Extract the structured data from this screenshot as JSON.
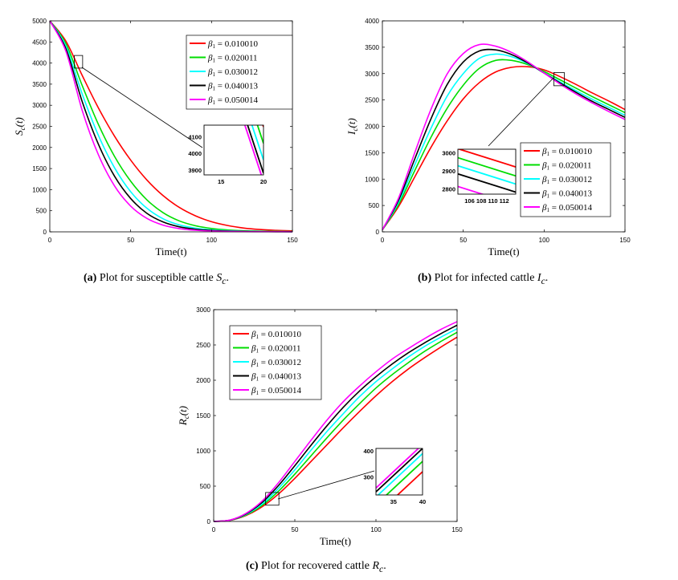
{
  "figure": {
    "panels": [
      {
        "id": "a",
        "caption": {
          "label": "(a)",
          "text": "Plot for susceptible cattle",
          "sym": "S",
          "sub": "c",
          "end": "."
        },
        "chart_data": {
          "type": "line",
          "xlabel": "Time(t)",
          "ylabel": {
            "sym": "S",
            "sub": "c",
            "arg": "(t)"
          },
          "xlim": [
            0,
            150
          ],
          "ylim": [
            0,
            5000
          ],
          "xticks": [
            0,
            50,
            100,
            150
          ],
          "yticks": [
            0,
            500,
            1000,
            1500,
            2000,
            2500,
            3000,
            3500,
            4000,
            4500,
            5000
          ],
          "legend_location": "upper-right",
          "series": [
            {
              "name": "β1 = 0.010010",
              "beta": "0.010010",
              "color": "#ff0000",
              "x": [
                0,
                10,
                20,
                30,
                40,
                50,
                60,
                70,
                80,
                90,
                100,
                110,
                120,
                130,
                140,
                150
              ],
              "y": [
                5000,
                4515,
                3710,
                2940,
                2268,
                1700,
                1230,
                860,
                580,
                380,
                240,
                150,
                90,
                55,
                35,
                22
              ]
            },
            {
              "name": "β1 = 0.020011",
              "beta": "0.020011",
              "color": "#00dd00",
              "x": [
                0,
                10,
                20,
                30,
                40,
                50,
                60,
                70,
                80,
                90,
                100,
                110,
                120,
                130,
                140,
                150
              ],
              "y": [
                5000,
                4455,
                3470,
                2550,
                1790,
                1200,
                760,
                455,
                260,
                145,
                80,
                44,
                25,
                15,
                10,
                7
              ]
            },
            {
              "name": "β1 = 0.030012",
              "beta": "0.030012",
              "color": "#00ffff",
              "x": [
                0,
                10,
                20,
                30,
                40,
                50,
                60,
                70,
                80,
                90,
                100,
                110,
                120,
                130,
                140,
                150
              ],
              "y": [
                5000,
                4395,
                3270,
                2290,
                1520,
                950,
                560,
                310,
                165,
                88,
                46,
                25,
                14,
                9,
                6,
                4
              ]
            },
            {
              "name": "β1 = 0.040013",
              "beta": "0.040013",
              "color": "#000000",
              "x": [
                0,
                10,
                20,
                30,
                40,
                50,
                60,
                70,
                80,
                90,
                100,
                110,
                120,
                130,
                140,
                150
              ],
              "y": [
                5000,
                4335,
                3090,
                2080,
                1320,
                790,
                440,
                235,
                120,
                62,
                32,
                17,
                10,
                6,
                4,
                3
              ]
            },
            {
              "name": "β1 = 0.050014",
              "beta": "0.050014",
              "color": "#ff00ff",
              "x": [
                0,
                10,
                20,
                30,
                40,
                50,
                60,
                70,
                80,
                90,
                100,
                110,
                120,
                130,
                140,
                150
              ],
              "y": [
                5000,
                4275,
                2880,
                1830,
                1090,
                610,
                320,
                160,
                78,
                38,
                19,
                10,
                6,
                4,
                3,
                2
              ]
            }
          ],
          "inset": {
            "xlim": [
              13,
              20
            ],
            "ylim": [
              3870,
              4170
            ],
            "xticks": [
              15,
              20
            ],
            "yticks": [
              3900,
              4000,
              4100
            ],
            "lines_at_x20": [
              4160,
              4060,
              3960,
              3880,
              3830
            ],
            "lines_slope": -155
          }
        }
      },
      {
        "id": "b",
        "caption": {
          "label": "(b)",
          "text": "Plot for infected cattle",
          "sym": "I",
          "sub": "c",
          "end": "."
        },
        "chart_data": {
          "type": "line",
          "xlabel": "Time(t)",
          "ylabel": {
            "sym": "I",
            "sub": "c",
            "arg": "(t)"
          },
          "xlim": [
            0,
            150
          ],
          "ylim": [
            0,
            4000
          ],
          "xticks": [
            0,
            50,
            100,
            150
          ],
          "yticks": [
            0,
            500,
            1000,
            1500,
            2000,
            2500,
            3000,
            3500,
            4000
          ],
          "legend_location": "lower-right",
          "series": [
            {
              "name": "β1 = 0.010010",
              "beta": "0.010010",
              "color": "#ff0000",
              "x": [
                0,
                10,
                20,
                30,
                40,
                50,
                60,
                70,
                80,
                90,
                100,
                110,
                120,
                130,
                140,
                150
              ],
              "y": [
                40,
                480,
                1040,
                1600,
                2100,
                2520,
                2830,
                3030,
                3120,
                3130,
                3070,
                2940,
                2790,
                2630,
                2480,
                2320
              ]
            },
            {
              "name": "β1 = 0.020011",
              "beta": "0.020011",
              "color": "#00dd00",
              "x": [
                0,
                10,
                20,
                30,
                40,
                50,
                60,
                70,
                80,
                90,
                100,
                110,
                120,
                130,
                140,
                150
              ],
              "y": [
                40,
                520,
                1160,
                1790,
                2340,
                2780,
                3100,
                3250,
                3250,
                3170,
                3040,
                2880,
                2720,
                2560,
                2410,
                2260
              ]
            },
            {
              "name": "β1 = 0.030012",
              "beta": "0.030012",
              "color": "#00ffff",
              "x": [
                0,
                10,
                20,
                30,
                40,
                50,
                60,
                70,
                80,
                90,
                100,
                110,
                120,
                130,
                140,
                150
              ],
              "y": [
                40,
                560,
                1270,
                1960,
                2570,
                3000,
                3290,
                3370,
                3320,
                3190,
                3010,
                2840,
                2670,
                2510,
                2360,
                2210
              ]
            },
            {
              "name": "β1 = 0.040013",
              "beta": "0.040013",
              "color": "#000000",
              "x": [
                0,
                10,
                20,
                30,
                40,
                50,
                60,
                70,
                80,
                90,
                100,
                110,
                120,
                130,
                140,
                150
              ],
              "y": [
                40,
                600,
                1380,
                2140,
                2790,
                3220,
                3430,
                3450,
                3360,
                3200,
                3010,
                2820,
                2640,
                2470,
                2320,
                2170
              ]
            },
            {
              "name": "β1 = 0.050014",
              "beta": "0.050014",
              "color": "#ff00ff",
              "x": [
                0,
                10,
                20,
                30,
                40,
                50,
                60,
                70,
                80,
                90,
                100,
                110,
                120,
                130,
                140,
                150
              ],
              "y": [
                40,
                640,
                1500,
                2320,
                2990,
                3380,
                3550,
                3520,
                3400,
                3220,
                3010,
                2800,
                2610,
                2440,
                2280,
                2130
              ]
            }
          ],
          "inset": {
            "xlim": [
              105.5,
              112.5
            ],
            "ylim": [
              2770,
              3020
            ],
            "xticks": [
              106,
              108,
              110,
              112
            ],
            "yticks": [
              2800,
              2900,
              3000
            ],
            "xticklabels": "106 108 110 112",
            "lines_at_x105": [
              3030,
              2980,
              2935,
              2890,
              2820
            ],
            "lines_slope": -14.5
          }
        }
      },
      {
        "id": "c",
        "caption": {
          "label": "(c)",
          "text": "Plot for recovered cattle",
          "sym": "R",
          "sub": "c",
          "end": "."
        },
        "chart_data": {
          "type": "line",
          "xlabel": "Time(t)",
          "ylabel": {
            "sym": "R",
            "sub": "c",
            "arg": "(t)"
          },
          "xlim": [
            0,
            150
          ],
          "ylim": [
            0,
            3000
          ],
          "xticks": [
            0,
            50,
            100,
            150
          ],
          "yticks": [
            0,
            500,
            1000,
            1500,
            2000,
            2500,
            3000
          ],
          "legend_location": "upper-left",
          "series": [
            {
              "name": "β1 = 0.010010",
              "beta": "0.010010",
              "color": "#ff0000",
              "x": [
                0,
                10,
                20,
                30,
                40,
                50,
                60,
                70,
                80,
                90,
                100,
                110,
                120,
                130,
                140,
                150
              ],
              "y": [
                0,
                15,
                85,
                210,
                390,
                610,
                850,
                1090,
                1330,
                1560,
                1780,
                1980,
                2160,
                2320,
                2470,
                2610
              ]
            },
            {
              "name": "β1 = 0.020011",
              "beta": "0.020011",
              "color": "#00dd00",
              "x": [
                0,
                10,
                20,
                30,
                40,
                50,
                60,
                70,
                80,
                90,
                100,
                110,
                120,
                130,
                140,
                150
              ],
              "y": [
                0,
                16,
                92,
                230,
                430,
                670,
                930,
                1190,
                1440,
                1670,
                1890,
                2080,
                2250,
                2410,
                2550,
                2680
              ]
            },
            {
              "name": "β1 = 0.030012",
              "beta": "0.030012",
              "color": "#00ffff",
              "x": [
                0,
                10,
                20,
                30,
                40,
                50,
                60,
                70,
                80,
                90,
                100,
                110,
                120,
                130,
                140,
                150
              ],
              "y": [
                0,
                17,
                100,
                250,
                470,
                730,
                1010,
                1280,
                1530,
                1770,
                1980,
                2160,
                2330,
                2480,
                2610,
                2730
              ]
            },
            {
              "name": "β1 = 0.040013",
              "beta": "0.040013",
              "color": "#000000",
              "x": [
                0,
                10,
                20,
                30,
                40,
                50,
                60,
                70,
                80,
                90,
                100,
                110,
                120,
                130,
                140,
                150
              ],
              "y": [
                0,
                18,
                108,
                272,
                510,
                790,
                1080,
                1360,
                1620,
                1850,
                2050,
                2230,
                2390,
                2530,
                2660,
                2780
              ]
            },
            {
              "name": "β1 = 0.050014",
              "beta": "0.050014",
              "color": "#ff00ff",
              "x": [
                0,
                10,
                20,
                30,
                40,
                50,
                60,
                70,
                80,
                90,
                100,
                110,
                120,
                130,
                140,
                150
              ],
              "y": [
                0,
                19,
                116,
                292,
                550,
                850,
                1150,
                1440,
                1700,
                1920,
                2120,
                2300,
                2450,
                2590,
                2720,
                2830
              ]
            }
          ],
          "inset": {
            "xlim": [
              32,
              40
            ],
            "ylim": [
              230,
              410
            ],
            "xticks": [
              35,
              40
            ],
            "yticks": [
              300,
              400
            ],
            "lines_at_x40": [
              320,
              360,
              390,
              410,
              425
            ],
            "lines_slope": 21
          }
        }
      }
    ]
  }
}
